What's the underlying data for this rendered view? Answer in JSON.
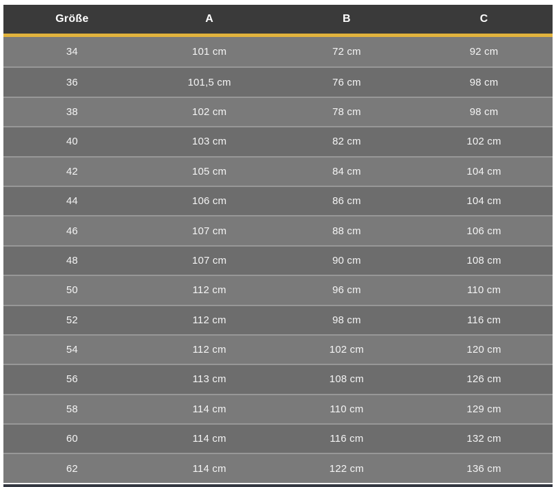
{
  "table": {
    "headers": [
      "Größe",
      "A",
      "B",
      "C"
    ],
    "header_keys": [
      "groesse",
      "a",
      "b",
      "c"
    ],
    "rows": [
      [
        "34",
        "101 cm",
        "72 cm",
        "92 cm"
      ],
      [
        "36",
        "101,5 cm",
        "76 cm",
        "98 cm"
      ],
      [
        "38",
        "102 cm",
        "78 cm",
        "98 cm"
      ],
      [
        "40",
        "103 cm",
        "82 cm",
        "102 cm"
      ],
      [
        "42",
        "105 cm",
        "84 cm",
        "104 cm"
      ],
      [
        "44",
        "106 cm",
        "86 cm",
        "104 cm"
      ],
      [
        "46",
        "107 cm",
        "88 cm",
        "106 cm"
      ],
      [
        "48",
        "107 cm",
        "90 cm",
        "108 cm"
      ],
      [
        "50",
        "112 cm",
        "96 cm",
        "110 cm"
      ],
      [
        "52",
        "112 cm",
        "98 cm",
        "116 cm"
      ],
      [
        "54",
        "112 cm",
        "102 cm",
        "120 cm"
      ],
      [
        "56",
        "113 cm",
        "108 cm",
        "126 cm"
      ],
      [
        "58",
        "114 cm",
        "110 cm",
        "129 cm"
      ],
      [
        "60",
        "114 cm",
        "116 cm",
        "132 cm"
      ],
      [
        "62",
        "114 cm",
        "122 cm",
        "136 cm"
      ]
    ]
  },
  "colors": {
    "header_bg": "#3a3a3a",
    "accent_line": "#e1b33d",
    "row_light": "#7a7a7a",
    "row_dark": "#6d6d6d",
    "row_separator": "#989898",
    "text": "#f4f4f4",
    "header_text": "#ffffff",
    "page_bg": "#ffffff",
    "bottom_edge": "#333740"
  },
  "chart_data": {
    "type": "table",
    "title": "",
    "columns": [
      "Größe",
      "A",
      "B",
      "C"
    ],
    "rows": [
      [
        "34",
        "101 cm",
        "72 cm",
        "92 cm"
      ],
      [
        "36",
        "101,5 cm",
        "76 cm",
        "98 cm"
      ],
      [
        "38",
        "102 cm",
        "78 cm",
        "98 cm"
      ],
      [
        "40",
        "103 cm",
        "82 cm",
        "102 cm"
      ],
      [
        "42",
        "105 cm",
        "84 cm",
        "104 cm"
      ],
      [
        "44",
        "106 cm",
        "86 cm",
        "104 cm"
      ],
      [
        "46",
        "107 cm",
        "88 cm",
        "106 cm"
      ],
      [
        "48",
        "107 cm",
        "90 cm",
        "108 cm"
      ],
      [
        "50",
        "112 cm",
        "96 cm",
        "110 cm"
      ],
      [
        "52",
        "112 cm",
        "98 cm",
        "116 cm"
      ],
      [
        "54",
        "112 cm",
        "102 cm",
        "120 cm"
      ],
      [
        "56",
        "113 cm",
        "108 cm",
        "126 cm"
      ],
      [
        "58",
        "114 cm",
        "110 cm",
        "129 cm"
      ],
      [
        "60",
        "114 cm",
        "116 cm",
        "132 cm"
      ],
      [
        "62",
        "114 cm",
        "122 cm",
        "136 cm"
      ]
    ],
    "units": "cm",
    "decimal_separator": ",",
    "layout": {
      "header_style": "dark-bar",
      "accent_divider_below_header": true,
      "alternating_row_shading": true,
      "grid": "horizontal-separators-only",
      "column_alignment": "center"
    }
  }
}
